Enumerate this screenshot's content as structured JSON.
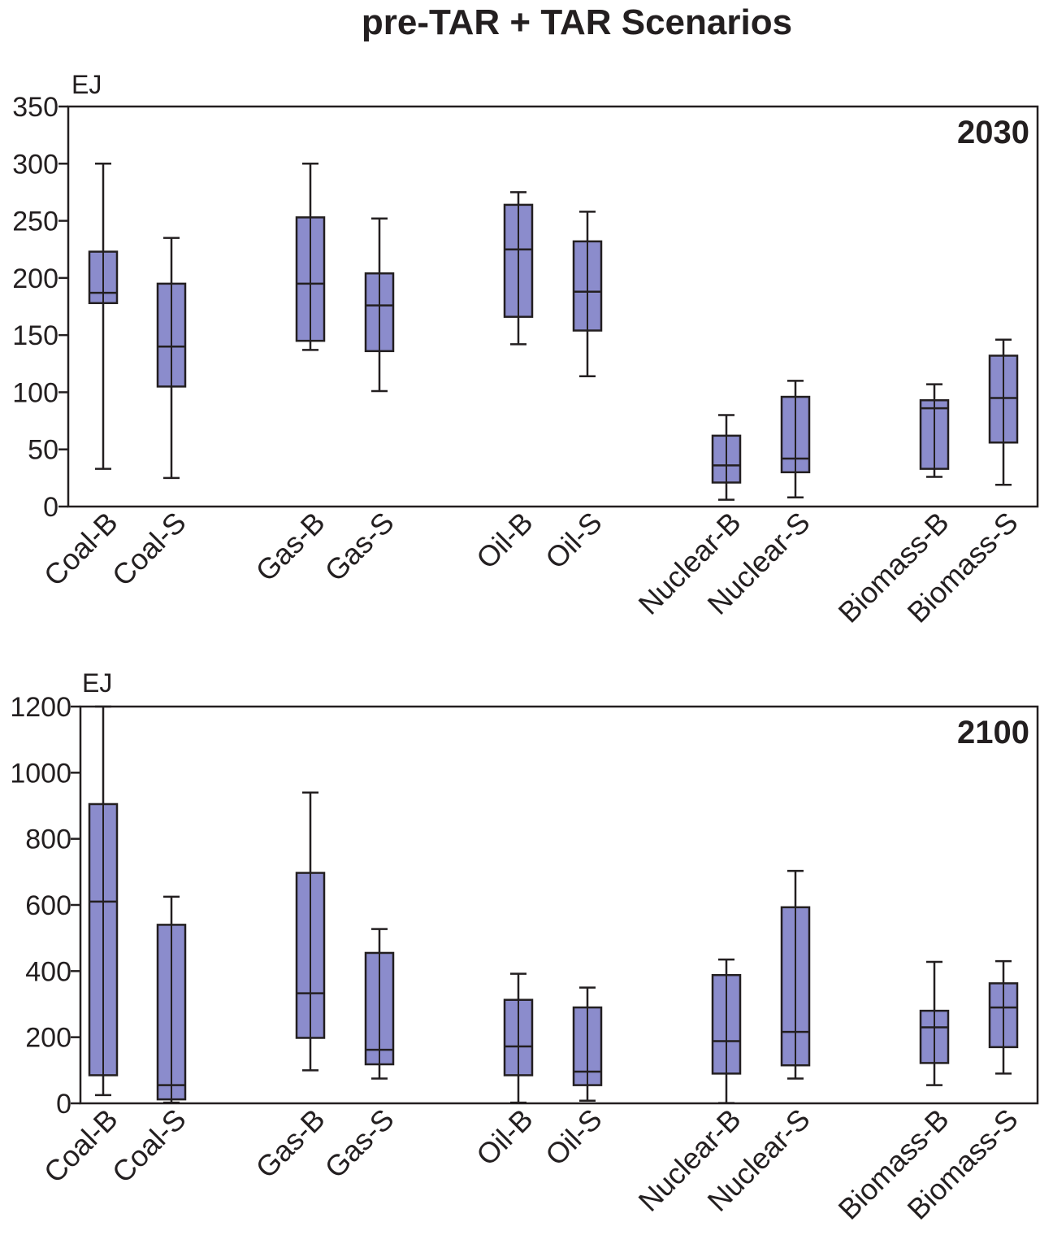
{
  "title": "pre-TAR + TAR Scenarios",
  "colors": {
    "box_fill": "#8b8ccc",
    "stroke": "#231f20",
    "background": "#ffffff"
  },
  "chart_data": [
    {
      "type": "box",
      "year_label": "2030",
      "ylabel": "EJ",
      "ylim": [
        0,
        350
      ],
      "yticks": [
        0,
        50,
        100,
        150,
        200,
        250,
        300,
        350
      ],
      "categories": [
        "Coal-B",
        "Coal-S",
        "Gas-B",
        "Gas-S",
        "Oil-B",
        "Oil-S",
        "Nuclear-B",
        "Nuclear-S",
        "Biomass-B",
        "Biomass-S"
      ],
      "boxes": [
        {
          "min": 33,
          "q1": 178,
          "median": 187,
          "q3": 223,
          "max": 300
        },
        {
          "min": 25,
          "q1": 105,
          "median": 140,
          "q3": 195,
          "max": 235
        },
        {
          "min": 137,
          "q1": 145,
          "median": 195,
          "q3": 253,
          "max": 300
        },
        {
          "min": 101,
          "q1": 136,
          "median": 176,
          "q3": 204,
          "max": 252
        },
        {
          "min": 142,
          "q1": 166,
          "median": 225,
          "q3": 264,
          "max": 275
        },
        {
          "min": 114,
          "q1": 154,
          "median": 188,
          "q3": 232,
          "max": 258
        },
        {
          "min": 6,
          "q1": 21,
          "median": 36,
          "q3": 62,
          "max": 80
        },
        {
          "min": 8,
          "q1": 30,
          "median": 42,
          "q3": 96,
          "max": 110
        },
        {
          "min": 26,
          "q1": 33,
          "median": 86,
          "q3": 93,
          "max": 107
        },
        {
          "min": 19,
          "q1": 56,
          "median": 95,
          "q3": 132,
          "max": 146
        }
      ]
    },
    {
      "type": "box",
      "year_label": "2100",
      "ylabel": "EJ",
      "ylim": [
        0,
        1200
      ],
      "yticks": [
        0,
        200,
        400,
        600,
        800,
        1000,
        1200
      ],
      "categories": [
        "Coal-B",
        "Coal-S",
        "Gas-B",
        "Gas-S",
        "Oil-B",
        "Oil-S",
        "Nuclear-B",
        "Nuclear-S",
        "Biomass-B",
        "Biomass-S"
      ],
      "boxes": [
        {
          "min": 25,
          "q1": 85,
          "median": 610,
          "q3": 905,
          "max": 1200
        },
        {
          "min": 2,
          "q1": 12,
          "median": 55,
          "q3": 540,
          "max": 625
        },
        {
          "min": 100,
          "q1": 198,
          "median": 333,
          "q3": 697,
          "max": 940
        },
        {
          "min": 75,
          "q1": 118,
          "median": 162,
          "q3": 455,
          "max": 527
        },
        {
          "min": 2,
          "q1": 85,
          "median": 172,
          "q3": 313,
          "max": 392
        },
        {
          "min": 8,
          "q1": 55,
          "median": 96,
          "q3": 290,
          "max": 350
        },
        {
          "min": 1,
          "q1": 90,
          "median": 188,
          "q3": 388,
          "max": 435
        },
        {
          "min": 75,
          "q1": 115,
          "median": 216,
          "q3": 593,
          "max": 703
        },
        {
          "min": 55,
          "q1": 122,
          "median": 230,
          "q3": 280,
          "max": 428
        },
        {
          "min": 90,
          "q1": 170,
          "median": 290,
          "q3": 363,
          "max": 430
        }
      ]
    }
  ]
}
